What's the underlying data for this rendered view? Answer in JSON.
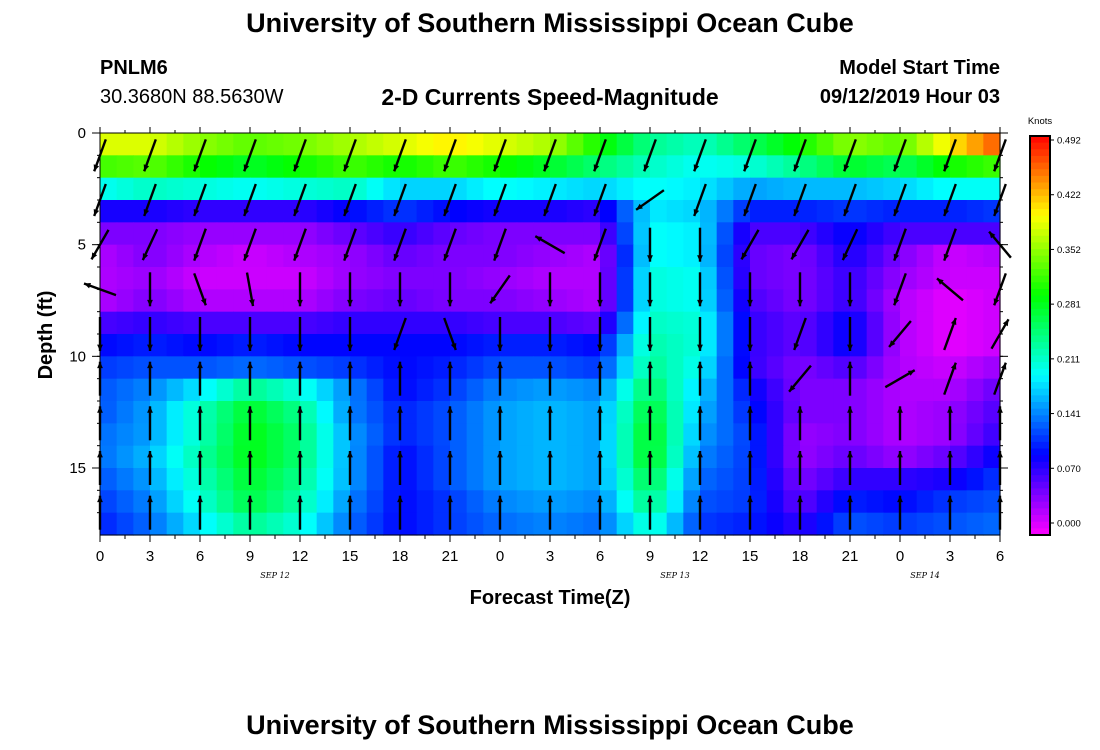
{
  "header": {
    "title": "University of Southern Mississippi Ocean Cube",
    "station_id": "PNLM6",
    "coordinates": "30.3680N 88.5630W",
    "plot_title": "2-D Currents Speed-Magnitude",
    "model_start_label": "Model Start Time",
    "model_start_value": "09/12/2019 Hour 03"
  },
  "footer": {
    "title": "University of Southern Mississippi Ocean Cube"
  },
  "chart_data": {
    "type": "heatmap",
    "title": "2-D Currents Speed-Magnitude",
    "xlabel": "Forecast Time(Z)",
    "ylabel": "Depth (ft)",
    "x_tick_labels": [
      "0",
      "3",
      "6",
      "9",
      "12",
      "15",
      "18",
      "21",
      "0",
      "3",
      "6",
      "9",
      "12",
      "15",
      "18",
      "21",
      "0",
      "3",
      "6"
    ],
    "date_labels": [
      {
        "label": "SEP 12",
        "tick_index": 3.5
      },
      {
        "label": "SEP 13",
        "tick_index": 11.5
      },
      {
        "label": "SEP 14",
        "tick_index": 16.5
      }
    ],
    "y_ticks": [
      0,
      5,
      10,
      15
    ],
    "ylim": [
      0,
      18
    ],
    "hours_range": [
      0,
      54
    ],
    "colorbar": {
      "title": "Knots",
      "tick_labels": [
        "0.492",
        "0.422",
        "0.352",
        "0.281",
        "0.211",
        "0.141",
        "0.070",
        "0.000"
      ],
      "range": [
        0,
        0.492
      ]
    },
    "depths_ft": [
      0.5,
      1.5,
      2.5,
      3.5,
      4.5,
      5.5,
      6.5,
      7.5,
      8.5,
      9.5,
      10.5,
      11.5,
      12.5,
      13.5,
      14.5,
      15.5,
      16.5,
      17.5
    ],
    "time_columns_hours": [
      0,
      3,
      6,
      9,
      12,
      15,
      18,
      21,
      24,
      27,
      30,
      33,
      36,
      39,
      42,
      45,
      48,
      51,
      54
    ],
    "speed_knots": [
      [
        0.38,
        0.38,
        0.35,
        0.33,
        0.34,
        0.36,
        0.38,
        0.4,
        0.38,
        0.36,
        0.3,
        0.24,
        0.22,
        0.26,
        0.3,
        0.35,
        0.33,
        0.4,
        0.46
      ],
      [
        0.32,
        0.33,
        0.3,
        0.28,
        0.3,
        0.32,
        0.3,
        0.32,
        0.3,
        0.28,
        0.25,
        0.22,
        0.2,
        0.21,
        0.24,
        0.28,
        0.26,
        0.3,
        0.32
      ],
      [
        0.2,
        0.22,
        0.21,
        0.2,
        0.21,
        0.22,
        0.18,
        0.18,
        0.2,
        0.19,
        0.18,
        0.2,
        0.19,
        0.16,
        0.17,
        0.17,
        0.18,
        0.2,
        0.2
      ],
      [
        0.09,
        0.09,
        0.08,
        0.08,
        0.08,
        0.1,
        0.12,
        0.1,
        0.09,
        0.09,
        0.08,
        0.19,
        0.18,
        0.11,
        0.11,
        0.12,
        0.11,
        0.11,
        0.12
      ],
      [
        0.05,
        0.05,
        0.04,
        0.04,
        0.04,
        0.06,
        0.08,
        0.06,
        0.05,
        0.05,
        0.05,
        0.2,
        0.19,
        0.07,
        0.07,
        0.1,
        0.07,
        0.07,
        0.07
      ],
      [
        0.03,
        0.05,
        0.03,
        0.02,
        0.03,
        0.04,
        0.06,
        0.05,
        0.05,
        0.04,
        0.03,
        0.2,
        0.19,
        0.06,
        0.05,
        0.09,
        0.05,
        0.02,
        0.03
      ],
      [
        0.03,
        0.04,
        0.02,
        0.02,
        0.02,
        0.04,
        0.05,
        0.05,
        0.04,
        0.03,
        0.03,
        0.21,
        0.2,
        0.06,
        0.05,
        0.08,
        0.04,
        0.02,
        0.02
      ],
      [
        0.03,
        0.05,
        0.03,
        0.03,
        0.03,
        0.05,
        0.06,
        0.05,
        0.05,
        0.04,
        0.03,
        0.21,
        0.2,
        0.07,
        0.05,
        0.08,
        0.03,
        0.01,
        0.02
      ],
      [
        0.07,
        0.08,
        0.07,
        0.07,
        0.07,
        0.08,
        0.08,
        0.08,
        0.07,
        0.07,
        0.06,
        0.22,
        0.21,
        0.08,
        0.06,
        0.1,
        0.03,
        0.01,
        0.02
      ],
      [
        0.1,
        0.11,
        0.1,
        0.11,
        0.1,
        0.1,
        0.1,
        0.1,
        0.11,
        0.11,
        0.1,
        0.23,
        0.21,
        0.08,
        0.06,
        0.1,
        0.03,
        0.01,
        0.02
      ],
      [
        0.12,
        0.13,
        0.13,
        0.14,
        0.13,
        0.12,
        0.1,
        0.11,
        0.13,
        0.13,
        0.12,
        0.24,
        0.2,
        0.08,
        0.05,
        0.07,
        0.03,
        0.02,
        0.04
      ],
      [
        0.13,
        0.15,
        0.19,
        0.24,
        0.21,
        0.15,
        0.1,
        0.12,
        0.15,
        0.16,
        0.15,
        0.26,
        0.18,
        0.1,
        0.05,
        0.05,
        0.03,
        0.03,
        0.06
      ],
      [
        0.13,
        0.16,
        0.22,
        0.28,
        0.24,
        0.15,
        0.11,
        0.13,
        0.16,
        0.17,
        0.16,
        0.28,
        0.17,
        0.11,
        0.05,
        0.05,
        0.03,
        0.04,
        0.07
      ],
      [
        0.14,
        0.16,
        0.22,
        0.29,
        0.25,
        0.16,
        0.11,
        0.13,
        0.16,
        0.17,
        0.16,
        0.29,
        0.16,
        0.12,
        0.04,
        0.05,
        0.03,
        0.04,
        0.08
      ],
      [
        0.14,
        0.17,
        0.23,
        0.29,
        0.25,
        0.16,
        0.1,
        0.13,
        0.16,
        0.17,
        0.16,
        0.29,
        0.15,
        0.12,
        0.04,
        0.06,
        0.04,
        0.06,
        0.1
      ],
      [
        0.13,
        0.16,
        0.22,
        0.28,
        0.24,
        0.16,
        0.1,
        0.13,
        0.16,
        0.17,
        0.16,
        0.27,
        0.14,
        0.12,
        0.05,
        0.08,
        0.08,
        0.09,
        0.12
      ],
      [
        0.12,
        0.15,
        0.21,
        0.27,
        0.23,
        0.15,
        0.1,
        0.12,
        0.15,
        0.16,
        0.15,
        0.25,
        0.13,
        0.12,
        0.06,
        0.11,
        0.1,
        0.12,
        0.13
      ],
      [
        0.11,
        0.14,
        0.19,
        0.24,
        0.21,
        0.14,
        0.1,
        0.12,
        0.14,
        0.15,
        0.14,
        0.22,
        0.12,
        0.11,
        0.08,
        0.13,
        0.12,
        0.13,
        0.14
      ]
    ],
    "vector_depths_ft": [
      1,
      3,
      5,
      7,
      9,
      11,
      13,
      15,
      17
    ],
    "vector_direction_deg": [
      [
        200,
        200,
        200,
        200,
        200,
        200,
        200,
        200,
        200,
        200,
        200,
        200,
        200,
        200,
        200,
        200,
        200,
        200,
        200
      ],
      [
        200,
        200,
        200,
        200,
        200,
        200,
        200,
        200,
        200,
        200,
        200,
        235,
        200,
        200,
        200,
        200,
        200,
        200,
        200
      ],
      [
        210,
        205,
        200,
        200,
        200,
        200,
        200,
        200,
        200,
        300,
        200,
        180,
        180,
        210,
        210,
        205,
        200,
        200,
        320
      ],
      [
        290,
        180,
        160,
        170,
        180,
        180,
        180,
        180,
        215,
        180,
        180,
        180,
        180,
        180,
        180,
        180,
        200,
        310,
        200
      ],
      [
        180,
        180,
        180,
        180,
        180,
        180,
        200,
        160,
        180,
        180,
        180,
        180,
        180,
        180,
        200,
        180,
        220,
        20,
        30
      ],
      [
        0,
        0,
        0,
        0,
        0,
        0,
        0,
        0,
        0,
        0,
        0,
        0,
        0,
        0,
        220,
        0,
        60,
        20,
        20
      ],
      [
        0,
        0,
        0,
        0,
        0,
        0,
        0,
        0,
        0,
        0,
        0,
        0,
        0,
        0,
        0,
        0,
        0,
        0,
        0
      ],
      [
        0,
        0,
        0,
        0,
        0,
        0,
        0,
        0,
        0,
        0,
        0,
        0,
        0,
        0,
        0,
        0,
        0,
        0,
        0
      ],
      [
        0,
        0,
        0,
        0,
        0,
        0,
        0,
        0,
        0,
        0,
        0,
        0,
        0,
        0,
        0,
        0,
        0,
        0,
        0
      ]
    ]
  }
}
